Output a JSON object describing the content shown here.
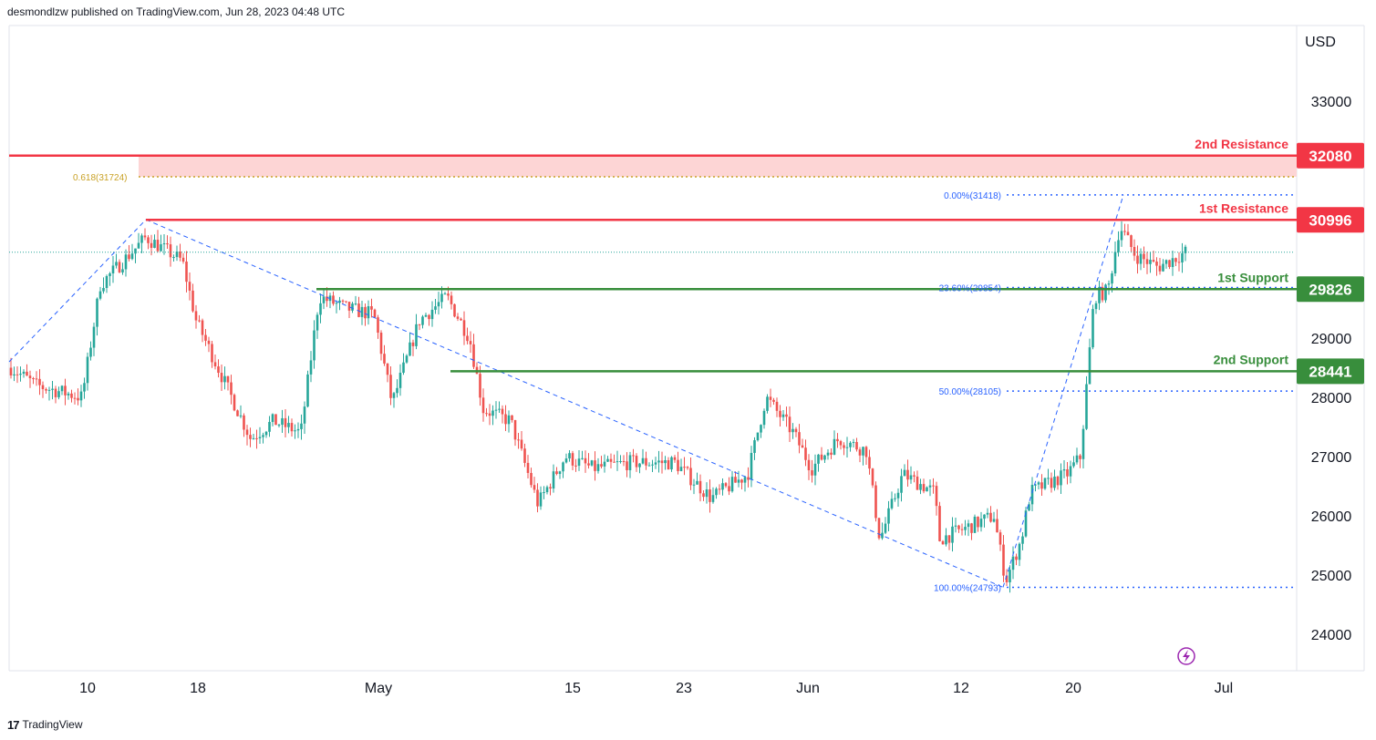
{
  "header": {
    "published": "desmondlzw published on TradingView.com, Jun 28, 2023 04:48 UTC"
  },
  "footer": {
    "brand": "TradingView",
    "logo": "17"
  },
  "chart_data": {
    "type": "candlestick",
    "currency": "USD",
    "y_ticks": [
      "33000",
      "29000",
      "28000",
      "27000",
      "26000",
      "25000",
      "24000"
    ],
    "x_ticks": [
      "10",
      "18",
      "May",
      "15",
      "23",
      "Jun",
      "12",
      "20",
      "Jul"
    ],
    "ylim": [
      23500,
      34000
    ],
    "resistance": [
      {
        "label": "2nd Resistance",
        "value": 32080
      },
      {
        "label": "1st Resistance",
        "value": 30996
      }
    ],
    "support": [
      {
        "label": "1st Support",
        "value": 29826
      },
      {
        "label": "2nd Support",
        "value": 28441
      }
    ],
    "fib_zone_label": "0.618(31724)",
    "fib_levels": [
      {
        "label": "0.00%(31418)",
        "value": 31418
      },
      {
        "label": "23.60%(29854)",
        "value": 29854
      },
      {
        "label": "50.00%(28105)",
        "value": 28105
      },
      {
        "label": "100.00%(24793)",
        "value": 24793
      }
    ],
    "last_price": 30450,
    "colors": {
      "up": "#26a69a",
      "down": "#ef5350",
      "resistance": "#f23645",
      "support": "#388e3c",
      "fib": "#2962ff",
      "zone": "#fdd5d5"
    }
  }
}
